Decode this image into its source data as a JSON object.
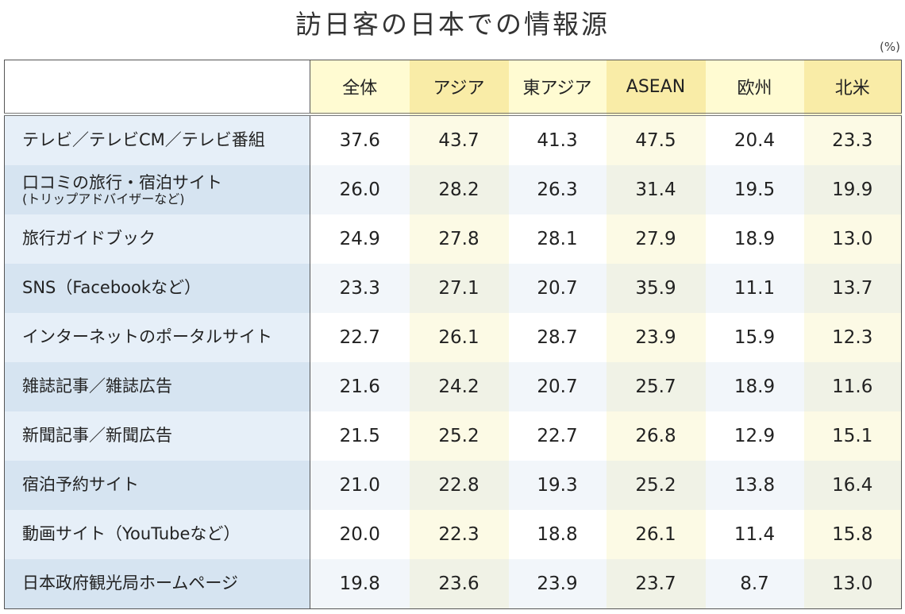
{
  "chart_data": {
    "type": "table",
    "title": "訪日客の日本での情報源",
    "unit": "(%)",
    "columns": [
      "全体",
      "アジア",
      "東アジア",
      "ASEAN",
      "欧州",
      "北米"
    ],
    "rows": [
      {
        "label": "テレビ／テレビCM／テレビ番組",
        "sub": "",
        "values": [
          "37.6",
          "43.7",
          "41.3",
          "47.5",
          "20.4",
          "23.3"
        ]
      },
      {
        "label": "口コミの旅行・宿泊サイト",
        "sub": "(トリップアドバイザーなど)",
        "values": [
          "26.0",
          "28.2",
          "26.3",
          "31.4",
          "19.5",
          "19.9"
        ]
      },
      {
        "label": "旅行ガイドブック",
        "sub": "",
        "values": [
          "24.9",
          "27.8",
          "28.1",
          "27.9",
          "18.9",
          "13.0"
        ]
      },
      {
        "label": "SNS（Facebookなど）",
        "sub": "",
        "values": [
          "23.3",
          "27.1",
          "20.7",
          "35.9",
          "11.1",
          "13.7"
        ]
      },
      {
        "label": "インターネットのポータルサイト",
        "sub": "",
        "values": [
          "22.7",
          "26.1",
          "28.7",
          "23.9",
          "15.9",
          "12.3"
        ]
      },
      {
        "label": "雑誌記事／雑誌広告",
        "sub": "",
        "values": [
          "21.6",
          "24.2",
          "20.7",
          "25.7",
          "18.9",
          "11.6"
        ]
      },
      {
        "label": "新聞記事／新聞広告",
        "sub": "",
        "values": [
          "21.5",
          "25.2",
          "22.7",
          "26.8",
          "12.9",
          "15.1"
        ]
      },
      {
        "label": "宿泊予約サイト",
        "sub": "",
        "values": [
          "21.0",
          "22.8",
          "19.3",
          "25.2",
          "13.8",
          "16.4"
        ]
      },
      {
        "label": "動画サイト（YouTubeなど）",
        "sub": "",
        "values": [
          "20.0",
          "22.3",
          "18.8",
          "26.1",
          "11.4",
          "15.8"
        ]
      },
      {
        "label": "日本政府観光局ホームページ",
        "sub": "",
        "values": [
          "19.8",
          "23.6",
          "23.9",
          "23.7",
          "8.7",
          "13.0"
        ]
      }
    ],
    "colors": {
      "header_light": "#fffbd2",
      "header_dark": "#f9eca7",
      "label_light": "#e6eff8",
      "label_dark": "#d6e4f1"
    }
  }
}
